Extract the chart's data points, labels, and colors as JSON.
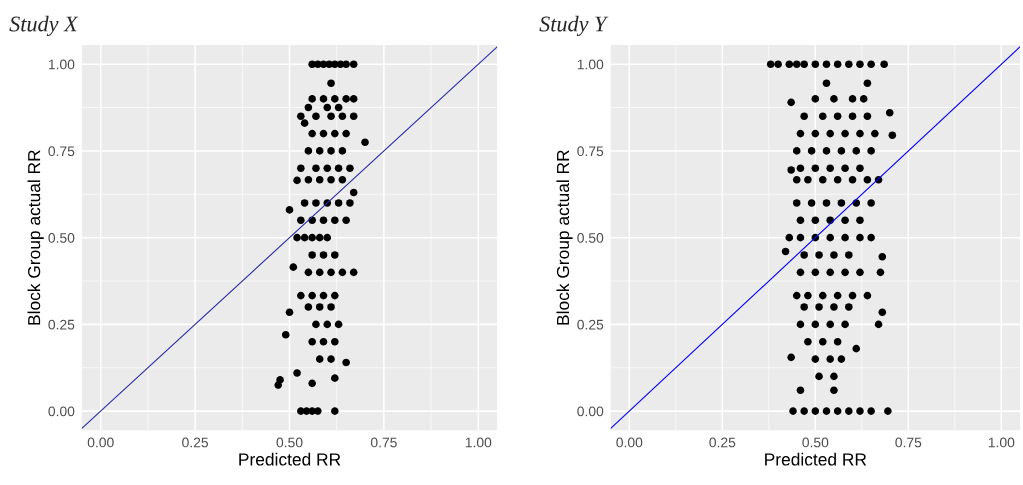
{
  "chart_data": [
    {
      "type": "scatter",
      "title": "Study X",
      "xlabel": "Predicted RR",
      "ylabel": "Block Group actual RR",
      "xlim": [
        -0.05,
        1.05
      ],
      "ylim": [
        -0.055,
        1.055
      ],
      "xticks": [
        {
          "value": 0,
          "label": "0.00"
        },
        {
          "value": 0.25,
          "label": "0.25"
        },
        {
          "value": 0.5,
          "label": "0.50"
        },
        {
          "value": 0.75,
          "label": "0.75"
        },
        {
          "value": 1,
          "label": "1.00"
        }
      ],
      "yticks": [
        {
          "value": 0,
          "label": "0.00"
        },
        {
          "value": 0.25,
          "label": "0.25"
        },
        {
          "value": 0.5,
          "label": "0.50"
        },
        {
          "value": 0.75,
          "label": "0.75"
        },
        {
          "value": 1,
          "label": "1.00"
        }
      ],
      "grid": true,
      "series": [
        {
          "marker": "circle",
          "color": "#000000",
          "x": [
            0.56,
            0.575,
            0.59,
            0.605,
            0.62,
            0.635,
            0.65,
            0.67,
            0.53,
            0.545,
            0.56,
            0.575,
            0.62,
            0.56,
            0.59,
            0.62,
            0.65,
            0.55,
            0.6,
            0.63,
            0.53,
            0.57,
            0.61,
            0.64,
            0.67,
            0.56,
            0.59,
            0.62,
            0.65,
            0.55,
            0.58,
            0.61,
            0.64,
            0.53,
            0.57,
            0.6,
            0.63,
            0.66,
            0.55,
            0.58,
            0.61,
            0.64,
            0.54,
            0.57,
            0.6,
            0.63,
            0.66,
            0.53,
            0.56,
            0.59,
            0.62,
            0.65,
            0.52,
            0.54,
            0.56,
            0.58,
            0.6,
            0.56,
            0.59,
            0.62,
            0.55,
            0.58,
            0.61,
            0.64,
            0.53,
            0.56,
            0.59,
            0.62,
            0.55,
            0.58,
            0.61,
            0.57,
            0.6,
            0.63,
            0.56,
            0.59,
            0.62,
            0.58,
            0.61,
            0.47,
            0.475,
            0.52,
            0.56,
            0.62,
            0.65,
            0.49,
            0.5,
            0.67,
            0.51,
            0.5,
            0.52,
            0.7,
            0.54,
            0.67,
            0.61,
            0.67
          ],
          "values": [
            1,
            1,
            1,
            1,
            1,
            1,
            1,
            1,
            0,
            0,
            0,
            0,
            0,
            0.9,
            0.9,
            0.9,
            0.9,
            0.875,
            0.875,
            0.875,
            0.85,
            0.85,
            0.85,
            0.85,
            0.85,
            0.8,
            0.8,
            0.8,
            0.8,
            0.75,
            0.75,
            0.75,
            0.75,
            0.7,
            0.7,
            0.7,
            0.7,
            0.7,
            0.667,
            0.667,
            0.667,
            0.667,
            0.6,
            0.6,
            0.6,
            0.6,
            0.6,
            0.55,
            0.55,
            0.55,
            0.55,
            0.55,
            0.5,
            0.5,
            0.5,
            0.5,
            0.5,
            0.45,
            0.45,
            0.45,
            0.4,
            0.4,
            0.4,
            0.4,
            0.333,
            0.333,
            0.333,
            0.333,
            0.3,
            0.3,
            0.3,
            0.25,
            0.25,
            0.25,
            0.2,
            0.2,
            0.2,
            0.15,
            0.15,
            0.075,
            0.09,
            0.11,
            0.08,
            0.095,
            0.14,
            0.22,
            0.285,
            0.4,
            0.415,
            0.58,
            0.665,
            0.775,
            0.83,
            0.63,
            0.945,
            0.9
          ]
        },
        {
          "type": "line",
          "marker": "none",
          "color": "#2a2aa6",
          "x": [
            -0.05,
            1.05
          ],
          "values": [
            -0.05,
            1.05
          ]
        }
      ]
    },
    {
      "type": "scatter",
      "title": "Study Y",
      "xlabel": "Predicted RR",
      "ylabel": "Block Group actual RR",
      "xlim": [
        -0.05,
        1.05
      ],
      "ylim": [
        -0.055,
        1.055
      ],
      "xticks": [
        {
          "value": 0,
          "label": "0.00"
        },
        {
          "value": 0.25,
          "label": "0.25"
        },
        {
          "value": 0.5,
          "label": "0.50"
        },
        {
          "value": 0.75,
          "label": "0.75"
        },
        {
          "value": 1,
          "label": "1.00"
        }
      ],
      "yticks": [
        {
          "value": 0,
          "label": "0.00"
        },
        {
          "value": 0.25,
          "label": "0.25"
        },
        {
          "value": 0.5,
          "label": "0.50"
        },
        {
          "value": 0.75,
          "label": "0.75"
        },
        {
          "value": 1,
          "label": "1.00"
        }
      ],
      "grid": true,
      "series": [
        {
          "marker": "circle",
          "color": "#000000",
          "x": [
            0.38,
            0.4,
            0.43,
            0.45,
            0.47,
            0.5,
            0.53,
            0.56,
            0.59,
            0.62,
            0.65,
            0.685,
            0.44,
            0.47,
            0.5,
            0.53,
            0.56,
            0.59,
            0.62,
            0.65,
            0.695,
            0.5,
            0.55,
            0.6,
            0.63,
            0.47,
            0.52,
            0.56,
            0.6,
            0.64,
            0.46,
            0.5,
            0.54,
            0.58,
            0.62,
            0.66,
            0.45,
            0.49,
            0.53,
            0.57,
            0.61,
            0.65,
            0.46,
            0.5,
            0.54,
            0.58,
            0.62,
            0.45,
            0.48,
            0.52,
            0.56,
            0.6,
            0.64,
            0.67,
            0.45,
            0.49,
            0.53,
            0.57,
            0.61,
            0.65,
            0.46,
            0.5,
            0.54,
            0.58,
            0.62,
            0.43,
            0.46,
            0.5,
            0.54,
            0.58,
            0.62,
            0.65,
            0.47,
            0.51,
            0.55,
            0.59,
            0.46,
            0.5,
            0.54,
            0.58,
            0.62,
            0.45,
            0.48,
            0.52,
            0.56,
            0.6,
            0.64,
            0.47,
            0.51,
            0.55,
            0.59,
            0.46,
            0.5,
            0.54,
            0.58,
            0.48,
            0.52,
            0.56,
            0.5,
            0.54,
            0.57,
            0.51,
            0.55,
            0.53,
            0.64,
            0.435,
            0.707,
            0.7,
            0.435,
            0.42,
            0.68,
            0.675,
            0.435,
            0.46,
            0.55,
            0.68,
            0.67,
            0.61
          ],
          "values": [
            1,
            1,
            1,
            1,
            1,
            1,
            1,
            1,
            1,
            1,
            1,
            1,
            0,
            0,
            0,
            0,
            0,
            0,
            0,
            0,
            0,
            0.9,
            0.9,
            0.9,
            0.9,
            0.85,
            0.85,
            0.85,
            0.85,
            0.85,
            0.8,
            0.8,
            0.8,
            0.8,
            0.8,
            0.8,
            0.75,
            0.75,
            0.75,
            0.75,
            0.75,
            0.75,
            0.7,
            0.7,
            0.7,
            0.7,
            0.7,
            0.667,
            0.667,
            0.667,
            0.667,
            0.667,
            0.667,
            0.667,
            0.6,
            0.6,
            0.6,
            0.6,
            0.6,
            0.6,
            0.55,
            0.55,
            0.55,
            0.55,
            0.55,
            0.5,
            0.5,
            0.5,
            0.5,
            0.5,
            0.5,
            0.5,
            0.45,
            0.45,
            0.45,
            0.45,
            0.4,
            0.4,
            0.4,
            0.4,
            0.4,
            0.333,
            0.333,
            0.333,
            0.333,
            0.333,
            0.333,
            0.3,
            0.3,
            0.3,
            0.3,
            0.25,
            0.25,
            0.25,
            0.25,
            0.2,
            0.2,
            0.2,
            0.15,
            0.15,
            0.15,
            0.1,
            0.1,
            0.945,
            0.945,
            0.89,
            0.795,
            0.86,
            0.695,
            0.46,
            0.445,
            0.4,
            0.155,
            0.06,
            0.06,
            0.285,
            0.25,
            0.18
          ]
        },
        {
          "type": "line",
          "marker": "none",
          "color": "#0000ff",
          "x": [
            -0.05,
            1.05
          ],
          "values": [
            -0.05,
            1.05
          ]
        }
      ]
    }
  ]
}
